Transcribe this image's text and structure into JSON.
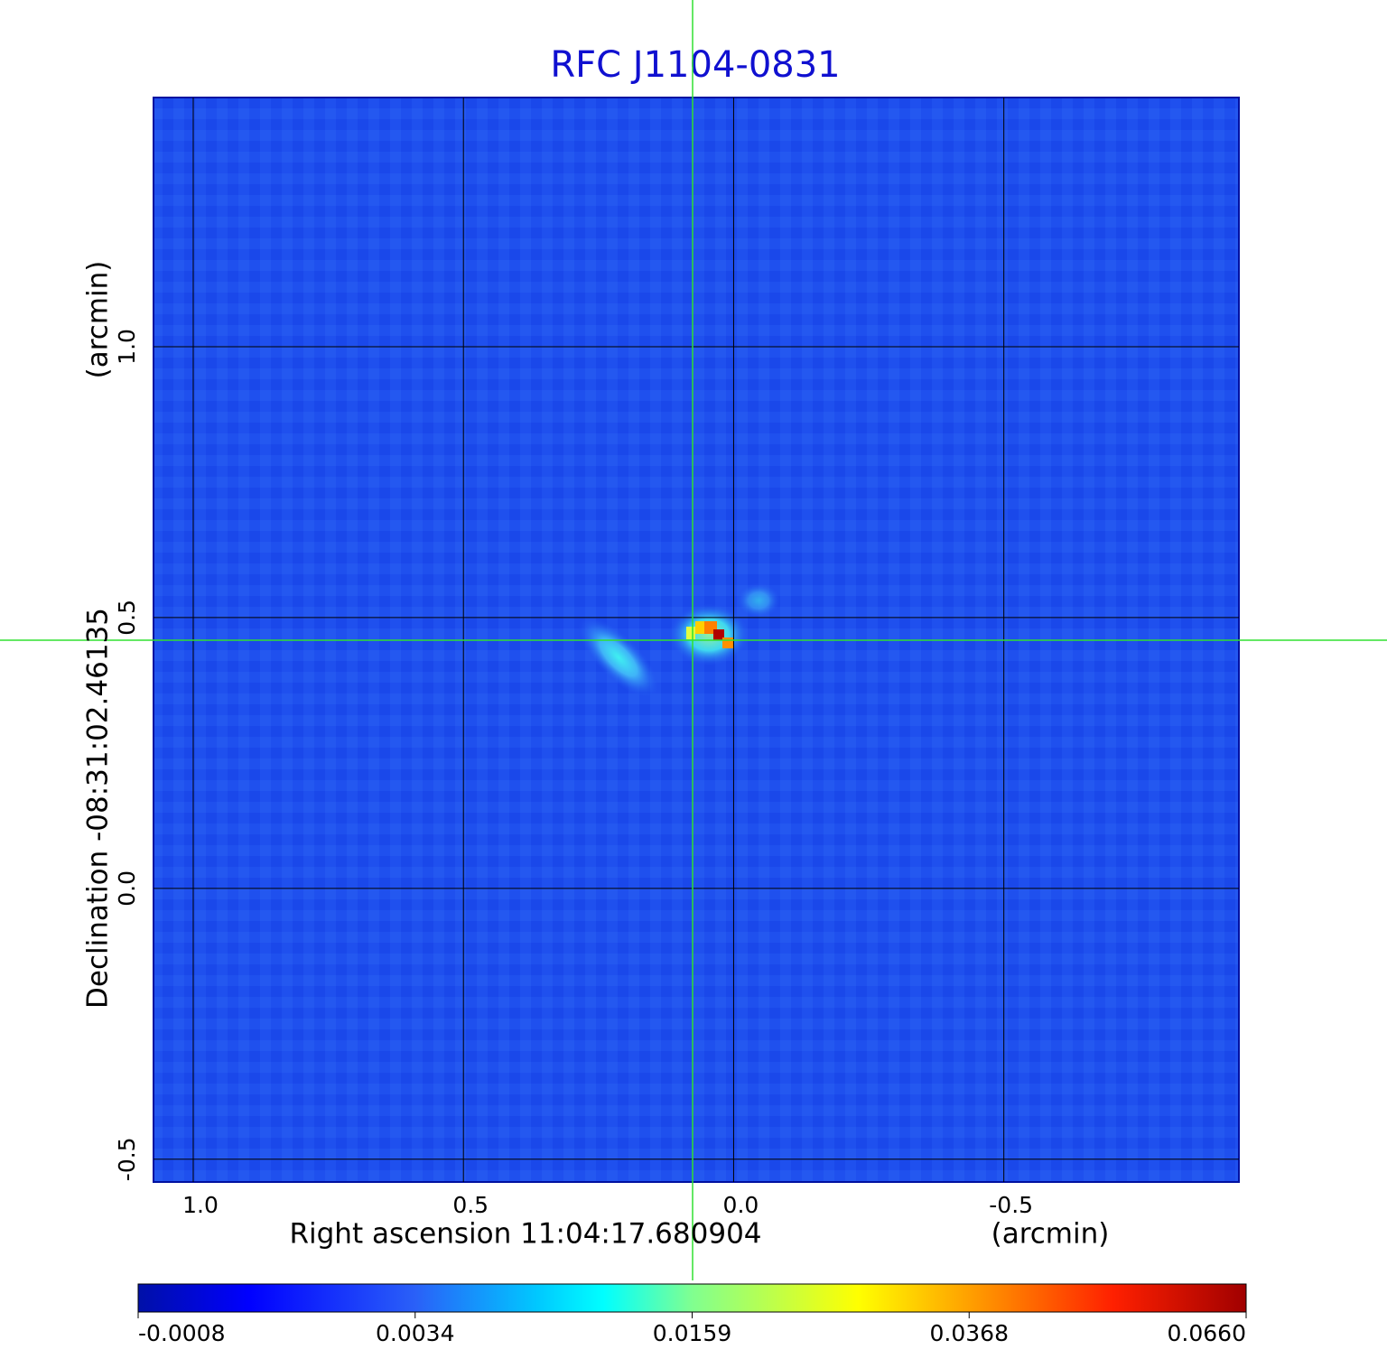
{
  "chart_data": {
    "type": "image",
    "title": "RFC J1104-0831",
    "x_label": "Right ascension  11:04:17.680904",
    "x_unit": "(arcmin)",
    "y_label": "Declination  -08:31:02.46135",
    "y_unit": "(arcmin)",
    "xlim": [
      1.0735,
      -0.935
    ],
    "xticks": [
      {
        "value": 1.0,
        "label": "1.0"
      },
      0.5,
      {
        "value": 0.0,
        "label": "0.0"
      },
      -0.5
    ],
    "ylim": [
      -0.542,
      1.46
    ],
    "yticks": [
      {
        "value": 1.0,
        "label": "1.0"
      },
      0.5,
      {
        "value": 0.0,
        "label": "0.0"
      },
      -0.5
    ],
    "grid": true,
    "colorbar": {
      "ticks": [
        {
          "value": -0.0008,
          "label": "-0.0008"
        },
        {
          "value": 0.0034,
          "label": "0.0034"
        },
        {
          "value": 0.0159,
          "label": "0.0159"
        },
        {
          "value": 0.0368,
          "label": "0.0368"
        },
        {
          "value": 0.066,
          "label": "0.0660"
        }
      ]
    }
  }
}
